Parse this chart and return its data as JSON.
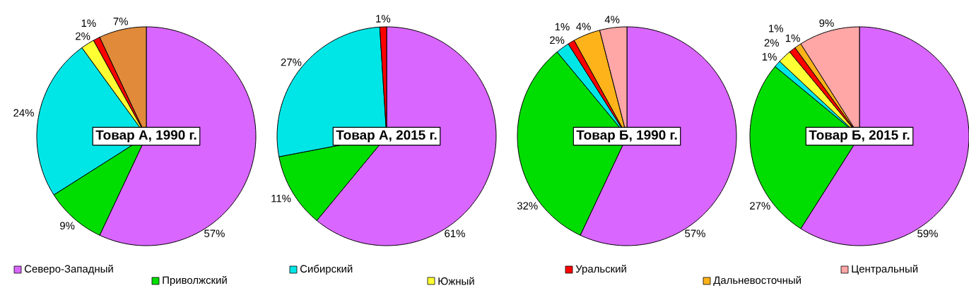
{
  "chart_data": [
    {
      "type": "pie",
      "title": "Товар  А, 1990 г.",
      "categories": [
        null,
        null,
        null,
        null,
        null,
        null,
        null
      ],
      "values": [
        57,
        9,
        24,
        2,
        1,
        7,
        0
      ],
      "colors": [
        "#d966ff",
        "#00dd00",
        "#00e6e6",
        "#ffff33",
        "#ff0000",
        "#e08a3a",
        "#ffa6a6"
      ],
      "value_labels": [
        "57%",
        "9%",
        "24%",
        "2%",
        "1%",
        "7%",
        null
      ]
    },
    {
      "type": "pie",
      "title": "Товар  А, 2015 г.",
      "categories": [
        null,
        null,
        null,
        null,
        null,
        null,
        null
      ],
      "values": [
        61,
        11,
        27,
        0,
        1,
        0,
        0
      ],
      "colors": [
        "#d966ff",
        "#00dd00",
        "#00e6e6",
        "#ffff33",
        "#ff0000",
        "#ffb31a",
        "#ffa6a6"
      ],
      "value_labels": [
        "61%",
        "11%",
        "27%",
        null,
        "1%",
        null,
        null
      ]
    },
    {
      "type": "pie",
      "title": "Товар  Б, 1990 г.",
      "categories": [
        null,
        null,
        null,
        null,
        null,
        null,
        null
      ],
      "values": [
        57,
        32,
        2,
        0,
        1,
        4,
        4
      ],
      "colors": [
        "#d966ff",
        "#00dd00",
        "#00e6e6",
        "#ffff33",
        "#ff0000",
        "#ffb31a",
        "#ffa6a6"
      ],
      "value_labels": [
        "57%",
        "32%",
        "2%",
        null,
        "1%",
        "4%",
        "4%"
      ]
    },
    {
      "type": "pie",
      "title": "Товар  Б, 2015 г.",
      "categories": [
        "Северо-Западный",
        "Приволжский",
        "Сибирский",
        "Южный",
        "Уральский",
        "Дальневосточный",
        "Центральный"
      ],
      "values": [
        59,
        27,
        1,
        2,
        1,
        1,
        9
      ],
      "colors": [
        "#d966ff",
        "#00dd00",
        "#00e6e6",
        "#ffff33",
        "#ff0000",
        "#ffb31a",
        "#ffa6a6"
      ],
      "value_labels": [
        "59%",
        "27%",
        "1%",
        "2%",
        "1%",
        "1%",
        "9%"
      ],
      "legend": "bottom"
    }
  ]
}
